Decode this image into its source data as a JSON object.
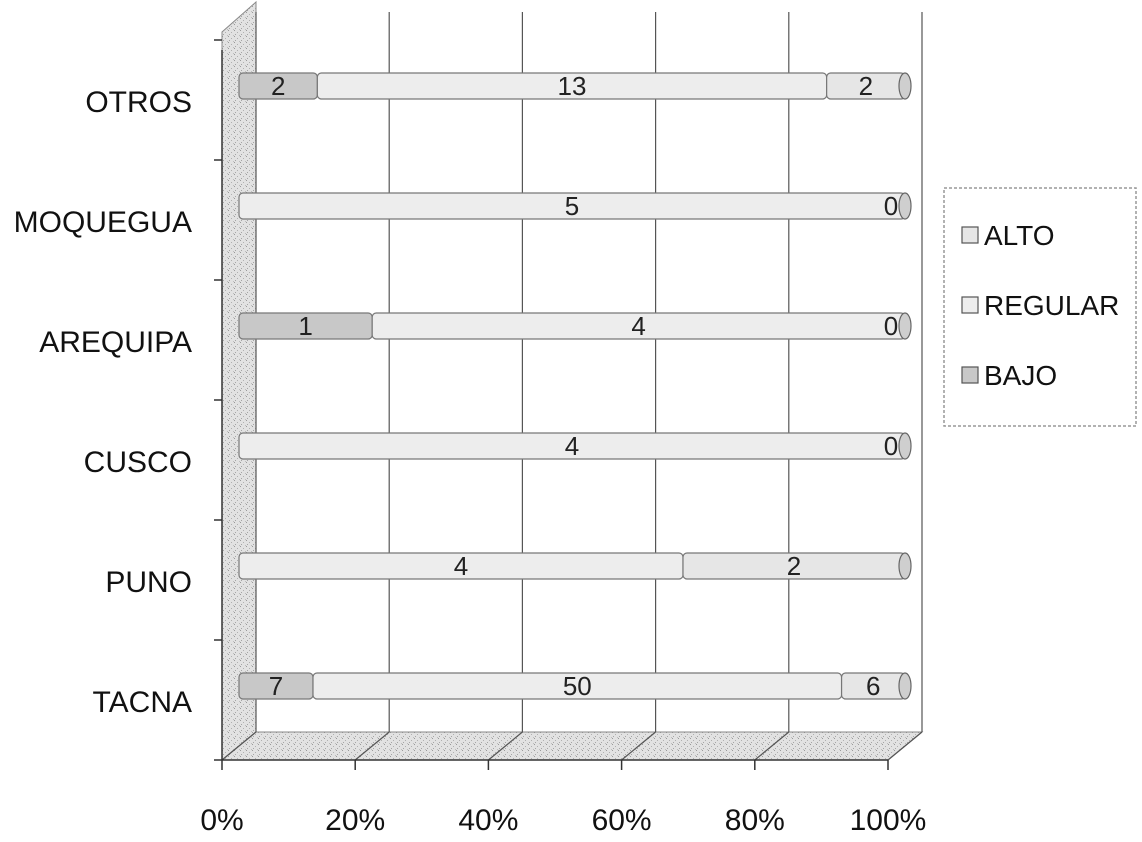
{
  "chart_data": {
    "type": "bar",
    "orientation": "horizontal",
    "stacked": "percent",
    "three_d": true,
    "categories": [
      "TACNA",
      "PUNO",
      "CUSCO",
      "AREQUIPA",
      "MOQUEGUA",
      "OTROS"
    ],
    "series": [
      {
        "name": "BAJO",
        "values": [
          7,
          0,
          0,
          1,
          0,
          2
        ],
        "color": "#c8c8c8"
      },
      {
        "name": "REGULAR",
        "values": [
          50,
          4,
          4,
          4,
          5,
          13
        ],
        "color": "#ededed"
      },
      {
        "name": "ALTO",
        "values": [
          6,
          2,
          0,
          0,
          0,
          2
        ],
        "color": "#e6e6e6"
      }
    ],
    "x_ticks": [
      "0%",
      "20%",
      "40%",
      "60%",
      "80%",
      "100%"
    ],
    "xlim": [
      0,
      100
    ],
    "grid": true,
    "legend_position": "right",
    "legend_order": [
      "ALTO",
      "REGULAR",
      "BAJO"
    ]
  }
}
